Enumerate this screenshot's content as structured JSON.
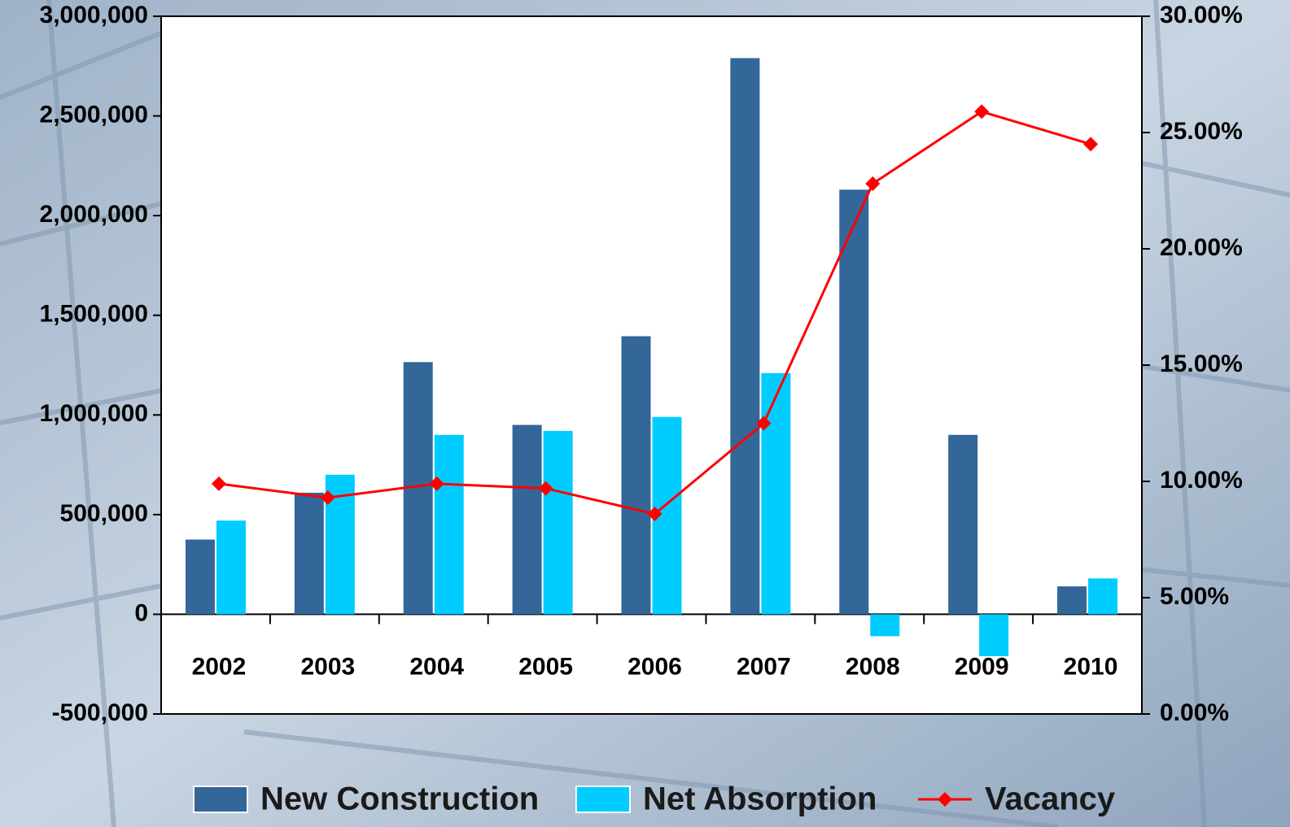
{
  "chart_data": {
    "type": "bar",
    "categories": [
      "2002",
      "2003",
      "2004",
      "2005",
      "2006",
      "2007",
      "2008",
      "2009",
      "2010"
    ],
    "series": [
      {
        "name": "New Construction",
        "color": "#336699",
        "values": [
          375000,
          610000,
          1265000,
          950000,
          1395000,
          2790000,
          2130000,
          900000,
          140000
        ]
      },
      {
        "name": "Net Absorption",
        "color": "#00ccff",
        "values": [
          470000,
          700000,
          900000,
          920000,
          990000,
          1210000,
          -110000,
          -210000,
          180000
        ]
      },
      {
        "name": "Vacancy",
        "color": "#ff0000",
        "type": "line",
        "axis": "y2",
        "values": [
          9.9,
          9.3,
          9.9,
          9.7,
          8.6,
          12.5,
          22.8,
          25.9,
          24.5
        ]
      }
    ],
    "ylim": [
      -500000,
      3000000
    ],
    "yticks": [
      {
        "value": -500000,
        "label": "-500,000"
      },
      0,
      {
        "value": 500000,
        "label": "500,000"
      },
      {
        "value": 1000000,
        "label": "1,000,000"
      },
      {
        "value": 1500000,
        "label": "1,500,000"
      },
      {
        "value": 2000000,
        "label": "2,000,000"
      },
      {
        "value": 2500000,
        "label": "2,500,000"
      },
      {
        "value": 3000000,
        "label": "3,000,000"
      }
    ],
    "y2lim": [
      0,
      30
    ],
    "y2ticks": [
      {
        "value": 0,
        "label": "0.00%"
      },
      {
        "value": 5,
        "label": "5.00%"
      },
      {
        "value": 10,
        "label": "10.00%"
      },
      {
        "value": 15,
        "label": "15.00%"
      },
      {
        "value": 20,
        "label": "20.00%"
      },
      {
        "value": 25,
        "label": "25.00%"
      },
      {
        "value": 30,
        "label": "30.00%"
      }
    ],
    "legend": "bottom"
  }
}
